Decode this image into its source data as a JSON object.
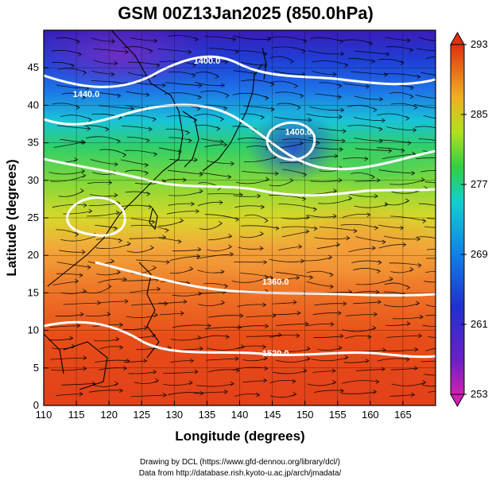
{
  "title": "GSM 00Z13Jan2025 (850.0hPa)",
  "xlabel": "Longitude (degrees)",
  "ylabel": "Latitude  (degrees)",
  "credit_line1": "Drawing by DCL (https://www.gfd-dennou.org/library/dcl/)",
  "credit_line2": "Data from http://database.rish.kyoto-u.ac.jp/arch/jmadata/",
  "colors": {
    "contour": "#ffffff",
    "coastline": "#000000",
    "streamline": "#000000"
  },
  "chart_data": {
    "type": "heatmap",
    "x_range": [
      110,
      170
    ],
    "y_range": [
      0,
      50
    ],
    "x_ticks": [
      110,
      115,
      120,
      125,
      130,
      135,
      140,
      145,
      150,
      155,
      160,
      165
    ],
    "y_ticks": [
      0,
      5,
      10,
      15,
      20,
      25,
      30,
      35,
      40,
      45
    ],
    "colorbar": {
      "min": 253,
      "max": 293,
      "ticks": [
        253,
        261,
        269,
        277,
        285,
        293
      ],
      "colors": [
        "#d020b0",
        "#3020c0",
        "#1060e0",
        "#10c0e0",
        "#30d050",
        "#c0e020",
        "#f0a020",
        "#e04010"
      ]
    },
    "contour_labels": [
      {
        "text": "1400.0",
        "lon": 135.0,
        "lat": 46.0
      },
      {
        "text": "1440.0",
        "lon": 116.5,
        "lat": 41.5
      },
      {
        "text": "1400.0",
        "lon": 149.0,
        "lat": 36.5
      },
      {
        "text": "1360.0",
        "lon": 145.5,
        "lat": 16.5
      },
      {
        "text": "1520.0",
        "lon": 145.5,
        "lat": 7.0
      }
    ]
  }
}
